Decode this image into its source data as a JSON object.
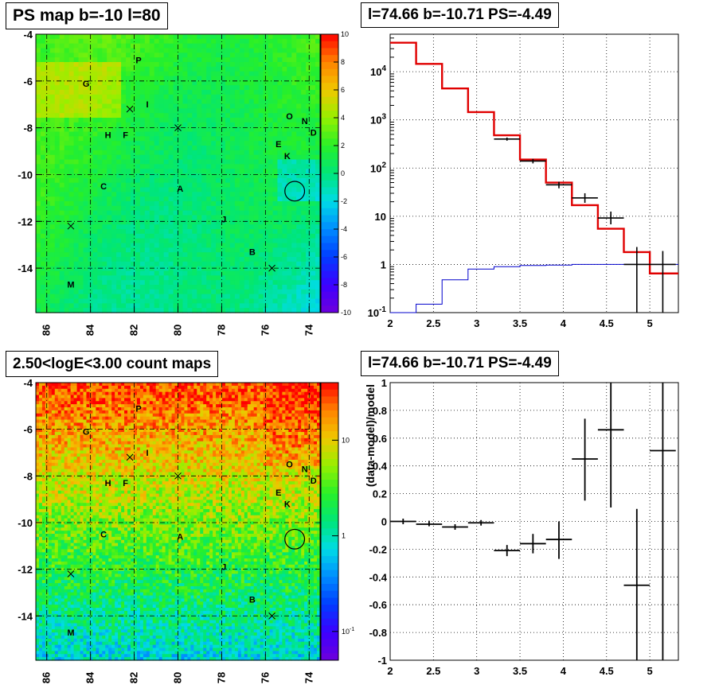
{
  "panels": {
    "top_left_title": "PS map b=-10 l=80",
    "top_right_title": "l=74.66 b=-10.71 PS=-4.49",
    "bottom_left_title": "2.50<logE<3.00 count maps",
    "bottom_right_title": "l=74.66 b=-10.71 PS=-4.49"
  },
  "colors": {
    "model_line": "#e00000",
    "exposure_line": "#0000cc",
    "data_points": "#000000",
    "grid": "#000000"
  },
  "chart_data": [
    {
      "type": "heatmap",
      "title": "PS map b=-10 l=80",
      "x_ticks": [
        "86",
        "84",
        "82",
        "80",
        "78",
        "76",
        "74"
      ],
      "y_ticks": [
        "-4",
        "-6",
        "-8",
        "-10",
        "-12",
        "-14"
      ],
      "xlim": [
        86.5,
        73.5
      ],
      "ylim": [
        -15.9,
        -4
      ],
      "colorbar": {
        "scale": "linear",
        "range": [
          -10,
          10
        ],
        "ticks": [
          "10",
          "8",
          "6",
          "4",
          "2",
          "0",
          "-2",
          "-4",
          "-6",
          "-8",
          "-10"
        ]
      },
      "sources": [
        {
          "label": "G",
          "l": 84.2,
          "b": -6.1
        },
        {
          "label": "P",
          "l": 81.8,
          "b": -5.1
        },
        {
          "label": "I",
          "l": 81.4,
          "b": -7.0
        },
        {
          "label": "H",
          "l": 83.2,
          "b": -8.3
        },
        {
          "label": "F",
          "l": 82.4,
          "b": -8.3
        },
        {
          "label": "O",
          "l": 74.9,
          "b": -7.5
        },
        {
          "label": "N",
          "l": 74.2,
          "b": -7.7
        },
        {
          "label": "D",
          "l": 73.8,
          "b": -8.2
        },
        {
          "label": "E",
          "l": 75.4,
          "b": -8.7
        },
        {
          "label": "K",
          "l": 75.0,
          "b": -9.2
        },
        {
          "label": "C",
          "l": 83.4,
          "b": -10.5
        },
        {
          "label": "A",
          "l": 79.9,
          "b": -10.6
        },
        {
          "label": "J",
          "l": 77.9,
          "b": -11.9
        },
        {
          "label": "B",
          "l": 76.6,
          "b": -13.3
        },
        {
          "label": "M",
          "l": 84.9,
          "b": -14.7
        }
      ],
      "crosses": [
        {
          "l": 82.2,
          "b": -7.2
        },
        {
          "l": 80.0,
          "b": -8.0
        },
        {
          "l": 84.9,
          "b": -12.2
        },
        {
          "l": 75.7,
          "b": -14.0
        }
      ],
      "circle": {
        "l": 74.66,
        "b": -10.71,
        "r": 0.45
      }
    },
    {
      "type": "line",
      "title": "l=74.66 b=-10.71 PS=-4.49",
      "xlim": [
        2,
        5.33
      ],
      "ylim": [
        0.1,
        60000
      ],
      "yscale": "log",
      "x_ticks": [
        "2",
        "2.5",
        "3",
        "3.5",
        "4",
        "4.5",
        "5"
      ],
      "y_ticks": [
        "10^4",
        "10^3",
        "10^2",
        "10",
        "1",
        "10^-1"
      ],
      "bin_edges": [
        2.0,
        2.3,
        2.6,
        2.9,
        3.2,
        3.5,
        3.8,
        4.1,
        4.4,
        4.7,
        5.0,
        5.33
      ],
      "series": [
        {
          "values": [
            40000,
            14500,
            4500,
            1450,
            480,
            150,
            50,
            17,
            5.5,
            1.8,
            0.65
          ]
        },
        {
          "values": [
            0.1,
            0.15,
            0.48,
            0.8,
            0.9,
            0.95,
            0.97,
            1.0,
            1.0,
            1.0,
            1.0
          ]
        },
        {
          "type": "errorbar",
          "x": [
            3.35,
            3.65,
            3.95,
            4.25,
            4.55,
            4.85,
            5.15
          ],
          "xerr": [
            0.15,
            0.15,
            0.15,
            0.15,
            0.15,
            0.15,
            0.15
          ],
          "y": [
            400,
            140,
            45,
            24,
            9.2,
            1.0,
            1.0
          ],
          "ylo": [
            370,
            125,
            38,
            19,
            6.8,
            0.1,
            0.1
          ],
          "yhi": [
            430,
            155,
            52,
            30,
            12.5,
            2.3,
            1.9
          ]
        }
      ]
    },
    {
      "type": "heatmap",
      "title": "2.50<logE<3.00 count maps",
      "x_ticks": [
        "86",
        "84",
        "82",
        "80",
        "78",
        "76",
        "74"
      ],
      "y_ticks": [
        "-4",
        "-6",
        "-8",
        "-10",
        "-12",
        "-14"
      ],
      "xlim": [
        86.5,
        73.5
      ],
      "ylim": [
        -15.9,
        -4
      ],
      "colorbar": {
        "scale": "log",
        "range": [
          0.05,
          40
        ],
        "ticks": [
          "10",
          "1",
          "10^-1"
        ]
      }
    },
    {
      "type": "scatter",
      "title": "l=74.66 b=-10.71 PS=-4.49",
      "ylabel": "(data-model)/model",
      "xlim": [
        2,
        5.33
      ],
      "ylim": [
        -1,
        1
      ],
      "x_ticks": [
        "2",
        "2.5",
        "3",
        "3.5",
        "4",
        "4.5",
        "5"
      ],
      "y_ticks": [
        "1",
        "0.8",
        "0.6",
        "0.4",
        "0.2",
        "0",
        "-0.2",
        "-0.4",
        "-0.6",
        "-0.8",
        "-1"
      ],
      "series": [
        {
          "type": "errorbar",
          "x": [
            2.15,
            2.45,
            2.75,
            3.05,
            3.35,
            3.65,
            3.95,
            4.25,
            4.55,
            4.85,
            5.15
          ],
          "xerr": [
            0.15,
            0.15,
            0.15,
            0.15,
            0.15,
            0.15,
            0.15,
            0.15,
            0.15,
            0.15,
            0.15
          ],
          "y": [
            0.0,
            -0.02,
            -0.04,
            -0.01,
            -0.21,
            -0.16,
            -0.13,
            0.45,
            0.66,
            -0.46,
            0.51
          ],
          "ylo": [
            -0.02,
            -0.035,
            -0.06,
            -0.03,
            -0.25,
            -0.23,
            -0.27,
            0.15,
            0.1,
            -1.0,
            -1.0
          ],
          "yhi": [
            0.02,
            0.005,
            -0.02,
            0.01,
            -0.17,
            -0.09,
            0.0,
            0.74,
            1.0,
            0.09,
            1.0
          ]
        }
      ]
    }
  ]
}
